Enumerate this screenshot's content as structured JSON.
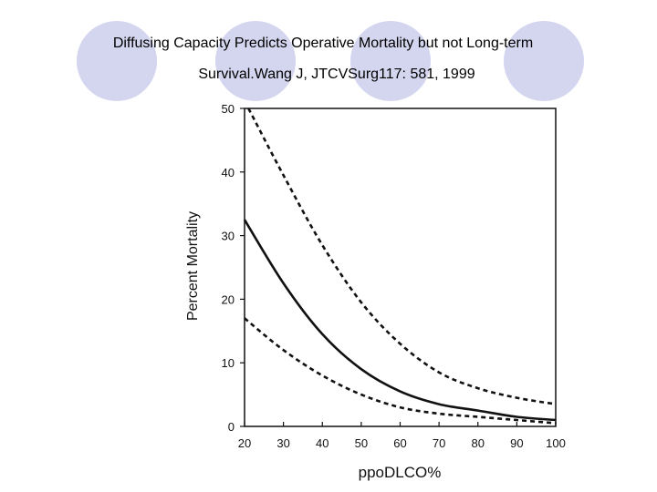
{
  "slide": {
    "title_line1": "Diffusing Capacity Predicts Operative Mortality but not Long-term",
    "title_line2": "Survival.Wang J, JTCVSurg117: 581, 1999",
    "decor_color": "#d4d5ef"
  },
  "chart_data": {
    "type": "line",
    "xlabel": "ppoDLCO%",
    "ylabel": "Percent Mortality",
    "xlim": [
      20,
      100
    ],
    "ylim": [
      0,
      50
    ],
    "xticks": [
      20,
      30,
      40,
      50,
      60,
      70,
      80,
      90,
      100
    ],
    "yticks": [
      0,
      10,
      20,
      30,
      40,
      50
    ],
    "grid": false,
    "series": [
      {
        "style": "dashed",
        "role": "upper-bound",
        "x": [
          21,
          30,
          40,
          50,
          60,
          70,
          80,
          90,
          100
        ],
        "values": [
          50,
          39.5,
          28.5,
          19.5,
          13,
          8.5,
          6,
          4.5,
          3.5
        ]
      },
      {
        "style": "solid",
        "role": "estimate",
        "x": [
          20,
          30,
          40,
          50,
          60,
          70,
          80,
          90,
          100
        ],
        "values": [
          32.5,
          22.5,
          14.5,
          9,
          5.5,
          3.5,
          2.5,
          1.5,
          1
        ]
      },
      {
        "style": "dashed",
        "role": "lower-bound",
        "x": [
          20,
          30,
          40,
          50,
          60,
          70,
          80,
          90,
          100
        ],
        "values": [
          17,
          12,
          8,
          5,
          3,
          2,
          1.5,
          1,
          0.5
        ]
      }
    ]
  }
}
